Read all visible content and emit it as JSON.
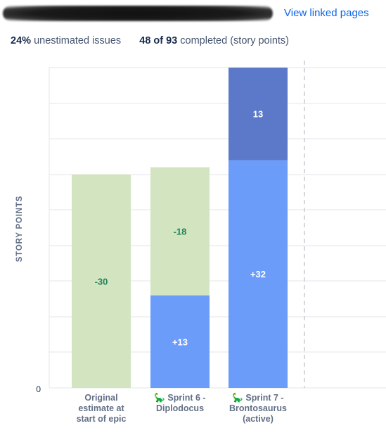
{
  "header": {
    "title_redacted": true,
    "link_label": "View linked pages"
  },
  "stats": {
    "unestimated_pct": "24%",
    "unestimated_label": "unestimated issues",
    "completed_value": "48 of 93",
    "completed_label": "completed (story points)"
  },
  "colors": {
    "estimate_green": "#d3e4c0",
    "added_blue": "#6b9cf9",
    "completed_dark": "#5b79c8",
    "green_text": "#1f845a",
    "axis_text": "#626f86"
  },
  "chart_data": {
    "type": "bar",
    "stacked": true,
    "ylabel": "STORY POINTS",
    "xlabel": "",
    "y_ticks": [
      "0"
    ],
    "ylim": [
      0,
      45
    ],
    "grid": true,
    "categories": [
      {
        "lines": [
          "Original",
          "estimate at",
          "start of epic"
        ],
        "icon": ""
      },
      {
        "lines": [
          "🦕 Sprint 6 -",
          "Diplodocus"
        ],
        "icon": "dinosaur-icon"
      },
      {
        "lines": [
          "🦕 Sprint 7 -",
          "Brontosaurus",
          "(active)"
        ],
        "icon": "dinosaur-icon"
      }
    ],
    "bars": [
      {
        "segments": [
          {
            "role": "removed-scope",
            "value": 30,
            "label": "-30",
            "color": "#d3e4c0",
            "text_color": "#1f845a"
          }
        ]
      },
      {
        "segments": [
          {
            "role": "added-scope",
            "value": 13,
            "label": "+13",
            "color": "#6b9cf9",
            "text_color": "#ffffff"
          },
          {
            "role": "removed-scope",
            "value": 18,
            "label": "-18",
            "color": "#d3e4c0",
            "text_color": "#1f845a"
          }
        ]
      },
      {
        "segments": [
          {
            "role": "added-scope",
            "value": 32,
            "label": "+32",
            "color": "#6b9cf9",
            "text_color": "#ffffff"
          },
          {
            "role": "completed",
            "value": 13,
            "label": "13",
            "color": "#5b79c8",
            "text_color": "#ffffff"
          }
        ]
      }
    ]
  }
}
